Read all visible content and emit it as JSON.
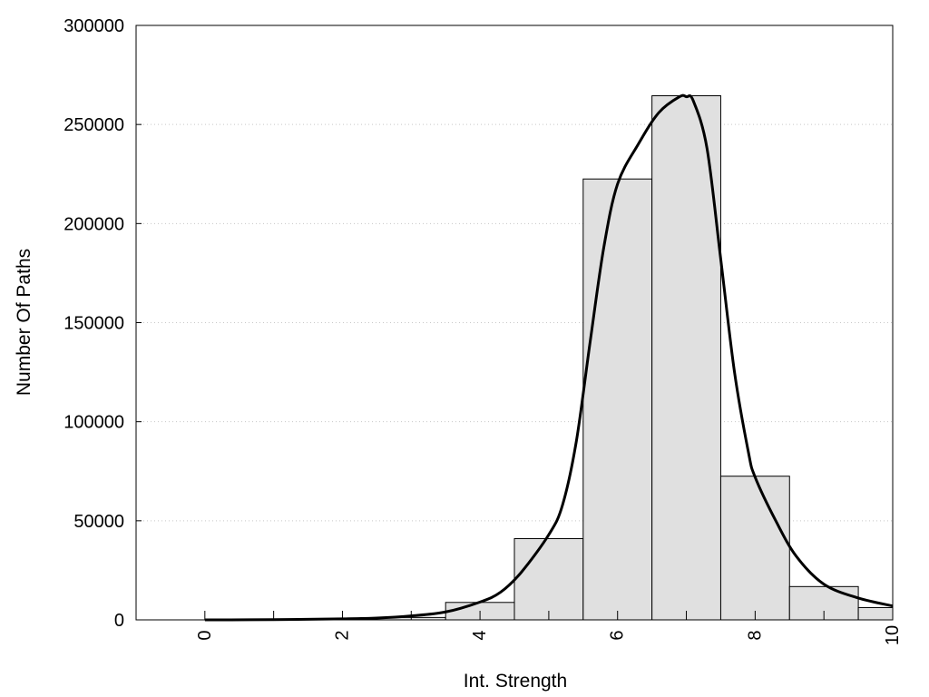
{
  "chart_data": {
    "type": "bar",
    "xlabel": "Int. Strength",
    "ylabel": "Number Of Paths",
    "xlim": [
      -1,
      10
    ],
    "ylim": [
      0,
      300000
    ],
    "x_ticks": [
      0,
      2,
      4,
      6,
      8,
      10
    ],
    "y_ticks": [
      0,
      50000,
      100000,
      150000,
      200000,
      250000,
      300000
    ],
    "grid": "horizontal dotted",
    "bar_width": 1,
    "bars": [
      {
        "x": 0,
        "value": 0
      },
      {
        "x": 1,
        "value": 0
      },
      {
        "x": 2,
        "value": 300
      },
      {
        "x": 3,
        "value": 1200
      },
      {
        "x": 4,
        "value": 8800
      },
      {
        "x": 5,
        "value": 41000
      },
      {
        "x": 6,
        "value": 222500
      },
      {
        "x": 7,
        "value": 264500
      },
      {
        "x": 8,
        "value": 72500
      },
      {
        "x": 9,
        "value": 16800
      },
      {
        "x": 10,
        "value": 6200
      }
    ],
    "curve": [
      {
        "x": 0,
        "y": 0
      },
      {
        "x": 1,
        "y": 100
      },
      {
        "x": 2,
        "y": 500
      },
      {
        "x": 2.5,
        "y": 900
      },
      {
        "x": 3,
        "y": 2000
      },
      {
        "x": 3.5,
        "y": 4000
      },
      {
        "x": 4,
        "y": 9000
      },
      {
        "x": 4.3,
        "y": 14000
      },
      {
        "x": 4.6,
        "y": 24000
      },
      {
        "x": 5,
        "y": 43000
      },
      {
        "x": 5.2,
        "y": 58000
      },
      {
        "x": 5.4,
        "y": 90000
      },
      {
        "x": 5.6,
        "y": 140000
      },
      {
        "x": 5.8,
        "y": 188000
      },
      {
        "x": 6,
        "y": 220000
      },
      {
        "x": 6.3,
        "y": 240000
      },
      {
        "x": 6.6,
        "y": 256000
      },
      {
        "x": 6.9,
        "y": 264000
      },
      {
        "x": 7,
        "y": 264000
      },
      {
        "x": 7.1,
        "y": 262000
      },
      {
        "x": 7.3,
        "y": 238000
      },
      {
        "x": 7.5,
        "y": 182000
      },
      {
        "x": 7.7,
        "y": 125000
      },
      {
        "x": 7.9,
        "y": 85000
      },
      {
        "x": 8,
        "y": 72000
      },
      {
        "x": 8.3,
        "y": 50000
      },
      {
        "x": 8.6,
        "y": 32000
      },
      {
        "x": 9,
        "y": 18000
      },
      {
        "x": 9.5,
        "y": 11000
      },
      {
        "x": 10,
        "y": 7000
      }
    ],
    "colors": {
      "bar_fill": "#e0e0e0",
      "bar_stroke": "#000000",
      "curve": "#000000",
      "grid": "#c8c8c8"
    }
  }
}
